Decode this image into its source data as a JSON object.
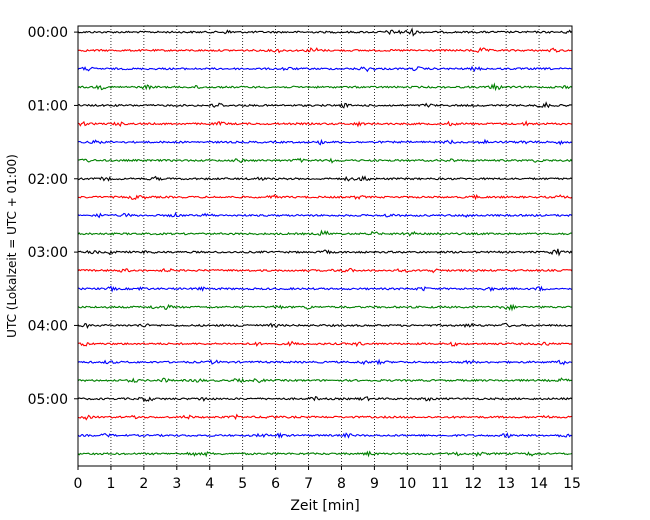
{
  "chart_data": {
    "type": "line",
    "title": "",
    "xlabel": "Zeit  [min]",
    "ylabel": "UTC (Lokalzeit = UTC + 01:00)",
    "xlim": [
      0,
      15
    ],
    "x_ticks": [
      0,
      1,
      2,
      3,
      4,
      5,
      6,
      7,
      8,
      9,
      10,
      11,
      12,
      13,
      14,
      15
    ],
    "ylim_hours": [
      5.9167,
      -0.0833
    ],
    "y_tick_labels": [
      "00:00",
      "01:00",
      "02:00",
      "03:00",
      "04:00",
      "05:00"
    ],
    "y_tick_hours": [
      0,
      1,
      2,
      3,
      4,
      5
    ],
    "trace_interval_minutes": 15,
    "trace_count": 24,
    "trace_colors": [
      "#000000",
      "#ff0000",
      "#0000ff",
      "#008000"
    ],
    "grid": "vertical-dotted",
    "legend": "none"
  }
}
